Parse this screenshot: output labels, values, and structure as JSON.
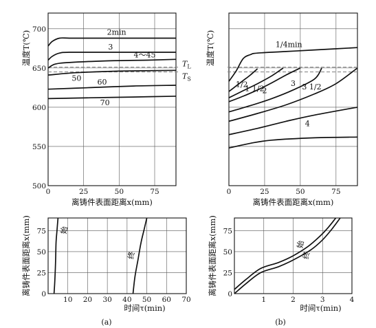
{
  "chart_data": [
    {
      "id": "a_top",
      "type": "line",
      "ylabel": "温度T(℃)",
      "xlabel": "离铸件表面距离x(mm)",
      "xlim": [
        0,
        90
      ],
      "ylim": [
        500,
        720
      ],
      "xticks": [
        0,
        25,
        50,
        75
      ],
      "yticks": [
        500,
        550,
        600,
        650,
        700
      ],
      "grid": true,
      "series": [
        {
          "name": "2min",
          "x": [
            0,
            3,
            8,
            15,
            30,
            60,
            90
          ],
          "y": [
            678,
            684,
            688,
            688,
            688,
            688,
            688
          ]
        },
        {
          "name": "3",
          "x": [
            0,
            3,
            8,
            15,
            40,
            70,
            90
          ],
          "y": [
            660,
            665,
            669,
            670,
            670,
            670,
            670
          ]
        },
        {
          "name": "4～45",
          "x": [
            0,
            5,
            15,
            40,
            70,
            90
          ],
          "y": [
            650,
            655,
            657,
            659,
            660,
            661
          ]
        },
        {
          "name": "50",
          "x": [
            0,
            20,
            50,
            90
          ],
          "y": [
            641,
            644,
            646,
            647
          ]
        },
        {
          "name": "60",
          "x": [
            0,
            30,
            60,
            90
          ],
          "y": [
            623,
            625,
            627,
            628
          ]
        },
        {
          "name": "70",
          "x": [
            0,
            30,
            60,
            90
          ],
          "y": [
            611,
            612,
            613,
            614
          ]
        }
      ],
      "reference_lines": [
        {
          "label": "T",
          "sub": "L",
          "y": 651
        },
        {
          "label": "T",
          "sub": "S",
          "y": 645
        }
      ]
    },
    {
      "id": "b_top",
      "type": "line",
      "ylabel": "温度T(℃)",
      "xlabel": "离铸件表面距离x(mm)",
      "xlim": [
        0,
        90
      ],
      "ylim": [
        500,
        720
      ],
      "xticks": [
        0,
        25,
        50,
        75
      ],
      "grid": true,
      "series": [
        {
          "name": "1/4min",
          "x": [
            0,
            5,
            10,
            15,
            20,
            40,
            60,
            90
          ],
          "y": [
            633,
            646,
            662,
            667,
            669,
            671,
            673,
            676
          ]
        },
        {
          "name": "1/2",
          "x": [
            0,
            5,
            10,
            15,
            20
          ],
          "y": [
            620,
            627,
            634,
            641,
            649
          ]
        },
        {
          "name": "1 1/2",
          "x": [
            0,
            10,
            20,
            30,
            38
          ],
          "y": [
            612,
            621,
            630,
            640,
            650
          ]
        },
        {
          "name": "2",
          "x": [
            0,
            10,
            20,
            30,
            40,
            50
          ],
          "y": [
            607,
            614,
            622,
            631,
            641,
            650
          ]
        },
        {
          "name": "3",
          "x": [
            0,
            15,
            30,
            45,
            60,
            65
          ],
          "y": [
            594,
            602,
            611,
            622,
            636,
            650
          ]
        },
        {
          "name": "3 1/2",
          "x": [
            0,
            20,
            40,
            60,
            75,
            90
          ],
          "y": [
            582,
            592,
            603,
            617,
            630,
            650
          ]
        },
        {
          "name": "4",
          "x": [
            0,
            20,
            40,
            60,
            90
          ],
          "y": [
            565,
            573,
            582,
            590,
            600
          ]
        },
        {
          "name": "",
          "x": [
            0,
            15,
            30,
            60,
            90
          ],
          "y": [
            548,
            554,
            558,
            561,
            562
          ]
        }
      ],
      "reference_lines": [
        {
          "label": "",
          "y": 651
        },
        {
          "label": "",
          "y": 645
        }
      ]
    },
    {
      "id": "a_bottom",
      "type": "line",
      "ylabel": "离铸件表面距离x(mm)",
      "xlabel": "时间τ(min)",
      "xlim": [
        0,
        70
      ],
      "ylim": [
        0,
        90
      ],
      "xticks": [
        10,
        20,
        30,
        40,
        50,
        60,
        70
      ],
      "yticks": [
        0,
        25,
        50,
        75
      ],
      "grid": true,
      "series": [
        {
          "name": "始",
          "x": [
            3,
            3.5,
            3.8,
            4,
            4.5,
            5
          ],
          "y": [
            0,
            20,
            40,
            60,
            75,
            90
          ]
        },
        {
          "name": "终",
          "x": [
            43,
            44,
            45.5,
            47,
            48.5,
            50
          ],
          "y": [
            0,
            20,
            40,
            60,
            75,
            90
          ]
        }
      ]
    },
    {
      "id": "b_bottom",
      "type": "line",
      "ylabel": "离铸件表面距离x(mm)",
      "xlabel": "时间τ(min)",
      "xlim": [
        0,
        4
      ],
      "ylim": [
        0,
        90
      ],
      "xticks": [
        1,
        2,
        3,
        4
      ],
      "yticks": [
        0,
        25,
        50,
        75
      ],
      "grid": true,
      "series": [
        {
          "name": "始",
          "x": [
            0,
            0.4,
            0.9,
            1.5,
            2,
            2.5,
            2.9,
            3.2,
            3.45
          ],
          "y": [
            5,
            17,
            30,
            37,
            45,
            56,
            68,
            79,
            90
          ]
        },
        {
          "name": "终",
          "x": [
            0,
            0.4,
            0.9,
            1.5,
            2,
            2.6,
            3.0,
            3.3,
            3.6
          ],
          "y": [
            0,
            12,
            25,
            32,
            40,
            52,
            64,
            76,
            90
          ]
        }
      ]
    }
  ],
  "captions": {
    "a": "(a)",
    "b": "(b)"
  }
}
